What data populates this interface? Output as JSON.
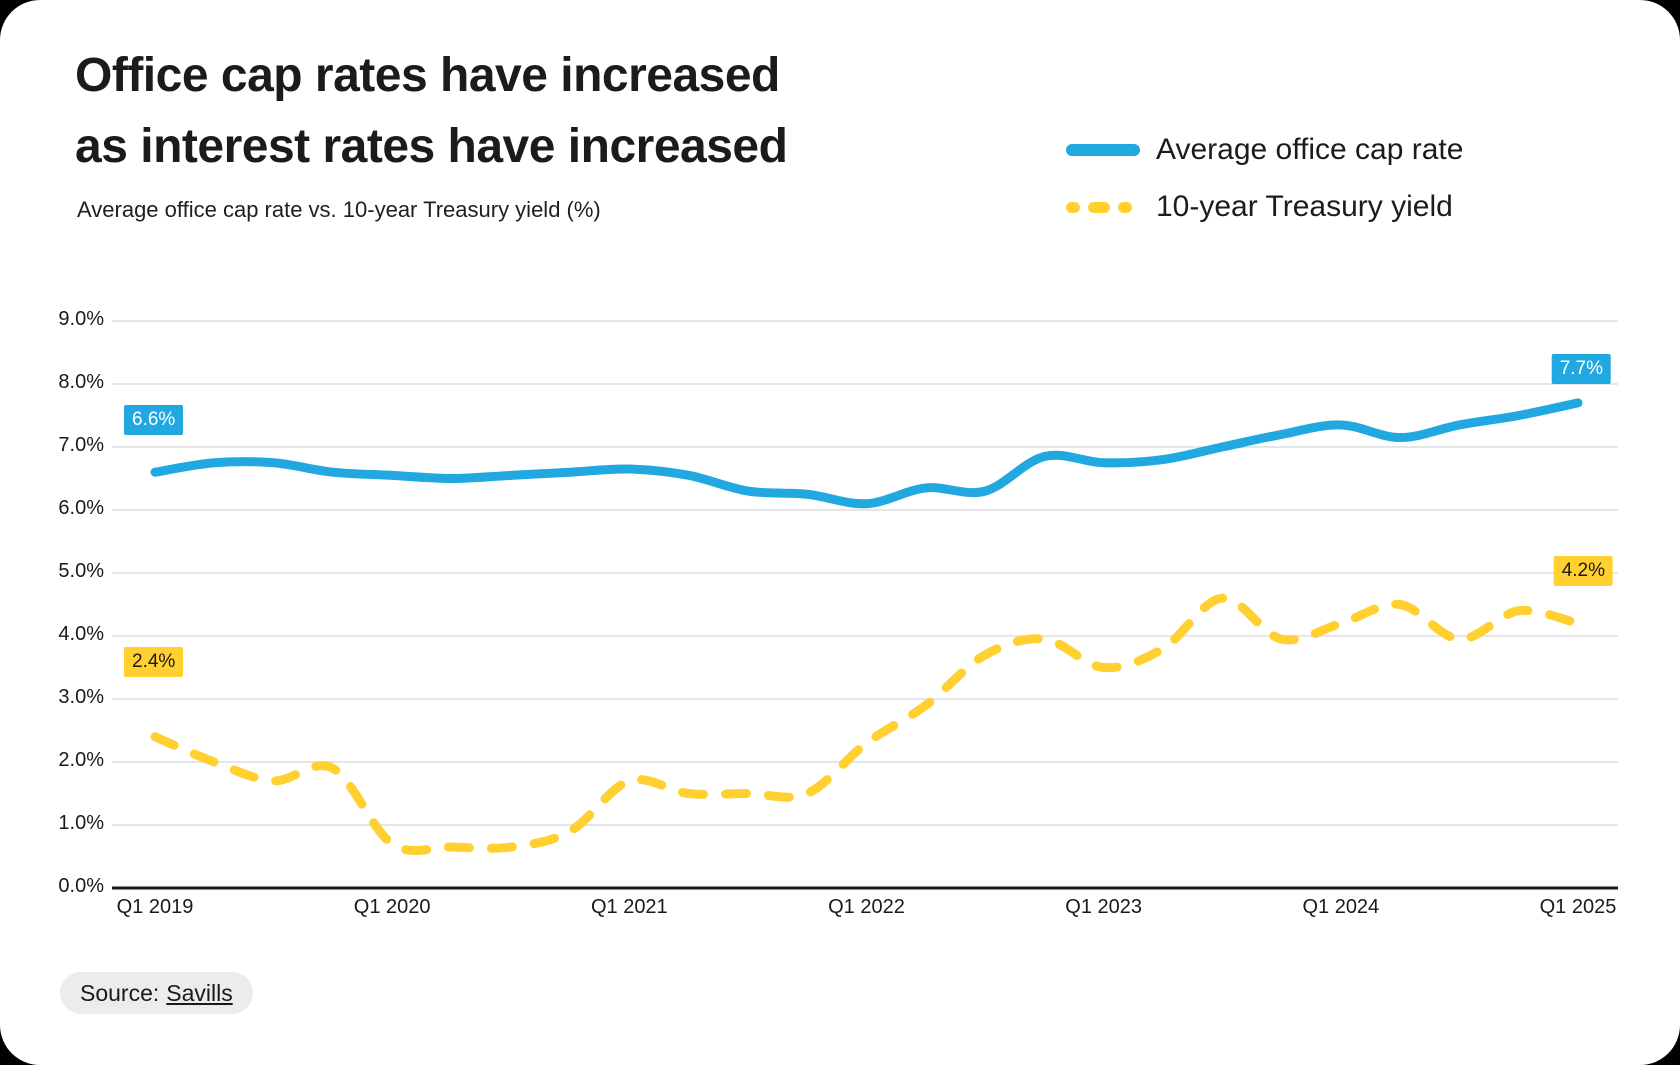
{
  "page": {
    "background_color": "#000000",
    "card_color": "#FFFFFF"
  },
  "header": {
    "title_line1": "Office cap rates have increased",
    "title_line2": "as interest rates have increased",
    "subtitle": "Average office cap rate vs. 10-year Treasury yield (%)"
  },
  "legend": {
    "items": [
      {
        "label": "Average office cap rate",
        "color": "#21A8E0",
        "style": "solid"
      },
      {
        "label": "10-year Treasury yield",
        "color": "#FFD02F",
        "style": "dashed"
      }
    ]
  },
  "source": {
    "label": "Source:",
    "link": "Savills"
  },
  "chart_data": {
    "type": "line",
    "categories": [
      "Q1 2019",
      "Q2 2019",
      "Q3 2019",
      "Q4 2019",
      "Q1 2020",
      "Q2 2020",
      "Q3 2020",
      "Q4 2020",
      "Q1 2021",
      "Q2 2021",
      "Q3 2021",
      "Q4 2021",
      "Q1 2022",
      "Q2 2022",
      "Q3 2022",
      "Q4 2022",
      "Q1 2023",
      "Q2 2023",
      "Q3 2023",
      "Q4 2023",
      "Q1 2024",
      "Q2 2024",
      "Q3 2024",
      "Q4 2024",
      "Q1 2025"
    ],
    "series": [
      {
        "name": "Average office cap rate",
        "color": "#21A8E0",
        "dashed": false,
        "values": [
          6.6,
          6.75,
          6.75,
          6.6,
          6.55,
          6.5,
          6.55,
          6.6,
          6.65,
          6.55,
          6.3,
          6.25,
          6.1,
          6.35,
          6.3,
          6.85,
          6.75,
          6.8,
          7.0,
          7.2,
          7.35,
          7.15,
          7.35,
          7.5,
          7.7
        ]
      },
      {
        "name": "10-year Treasury yield",
        "color": "#FFD02F",
        "dashed": true,
        "values": [
          2.4,
          2.0,
          1.7,
          1.9,
          0.7,
          0.65,
          0.65,
          0.9,
          1.7,
          1.5,
          1.5,
          1.5,
          2.3,
          2.9,
          3.7,
          3.95,
          3.5,
          3.8,
          4.6,
          3.95,
          4.2,
          4.5,
          3.95,
          4.4,
          4.2
        ]
      }
    ],
    "ylim": [
      0,
      9
    ],
    "y_tick_labels": [
      "0.0%",
      "1.0%",
      "2.0%",
      "3.0%",
      "4.0%",
      "5.0%",
      "6.0%",
      "7.0%",
      "8.0%",
      "9.0%"
    ],
    "x_tick_labels": [
      {
        "label": "Q1 2019",
        "index": 0
      },
      {
        "label": "Q1 2020",
        "index": 4
      },
      {
        "label": "Q1 2021",
        "index": 8
      },
      {
        "label": "Q1 2022",
        "index": 12
      },
      {
        "label": "Q1 2023",
        "index": 16
      },
      {
        "label": "Q1 2024",
        "index": 20
      },
      {
        "label": "Q1 2025",
        "index": 24
      }
    ],
    "grid": "horizontal",
    "legend_position": "top-right",
    "annotations": [
      {
        "text": "6.6%",
        "series": 0,
        "point_index": 0,
        "bg": "#21A8E0",
        "fg": "#FFFFFF"
      },
      {
        "text": "7.7%",
        "series": 0,
        "point_index": 24,
        "bg": "#21A8E0",
        "fg": "#FFFFFF"
      },
      {
        "text": "2.4%",
        "series": 1,
        "point_index": 0,
        "bg": "#FFD02F",
        "fg": "#1A1A1A"
      },
      {
        "text": "4.2%",
        "series": 1,
        "point_index": 24,
        "bg": "#FFD02F",
        "fg": "#1A1A1A"
      }
    ],
    "colors": {
      "gridline": "#E6E6E6",
      "axis": "#1A1A1A",
      "tick_text": "#1A1A1A"
    }
  }
}
